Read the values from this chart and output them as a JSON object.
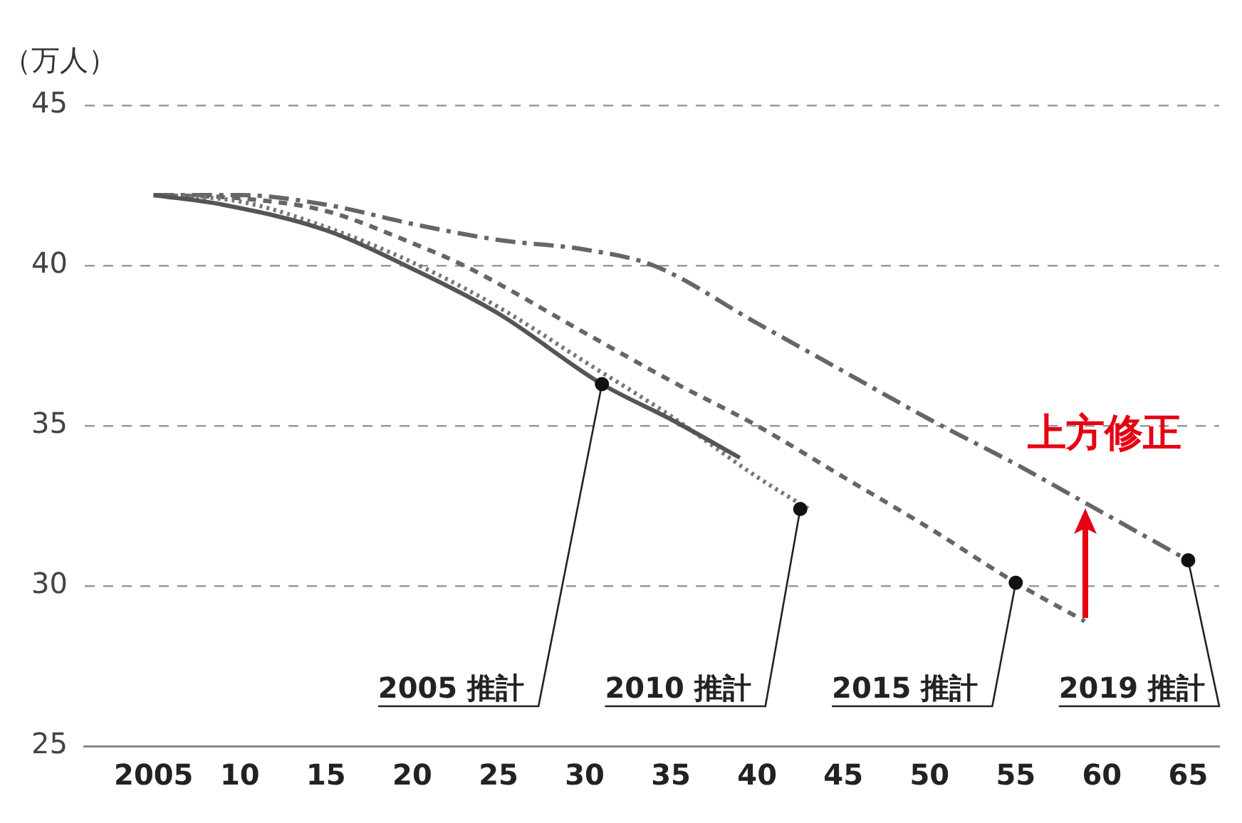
{
  "chart_data": {
    "type": "line",
    "ylabel": "（万人）",
    "xlim": [
      2001,
      2066.8
    ],
    "xticks": [
      {
        "value": 2005,
        "label": "2005"
      },
      {
        "value": 2010,
        "label": "10"
      },
      {
        "value": 2015,
        "label": "15"
      },
      {
        "value": 2020,
        "label": "20"
      },
      {
        "value": 2025,
        "label": "25"
      },
      {
        "value": 2030,
        "label": "30"
      },
      {
        "value": 2035,
        "label": "35"
      },
      {
        "value": 2040,
        "label": "40"
      },
      {
        "value": 2045,
        "label": "45"
      },
      {
        "value": 2050,
        "label": "50"
      },
      {
        "value": 2055,
        "label": "55"
      },
      {
        "value": 2060,
        "label": "60"
      },
      {
        "value": 2065,
        "label": "65"
      }
    ],
    "ylim": [
      25,
      45
    ],
    "yticks": [
      25,
      30,
      35,
      40,
      45
    ],
    "grid": "y",
    "legend": false,
    "marker": "none",
    "series": [
      {
        "color": "#555555",
        "line_style": "solid",
        "x": [
          2005,
          2009,
          2015,
          2020,
          2025,
          2031,
          2035,
          2039
        ],
        "values": [
          42.2,
          41.9,
          41.1,
          39.9,
          38.5,
          36.3,
          35.2,
          34.0
        ]
      },
      {
        "color": "#777777",
        "line_style": "dotted",
        "x": [
          2005,
          2010,
          2015,
          2020,
          2025,
          2030,
          2035,
          2040,
          2043
        ],
        "values": [
          42.2,
          42.0,
          41.2,
          40.1,
          38.7,
          37.0,
          35.3,
          33.4,
          32.4
        ]
      },
      {
        "color": "#666666",
        "line_style": "dashed",
        "x": [
          2005,
          2010,
          2015,
          2020,
          2023,
          2030,
          2035,
          2040,
          2045,
          2050,
          2055,
          2059
        ],
        "values": [
          42.2,
          42.1,
          41.7,
          40.7,
          40.0,
          37.9,
          36.4,
          35.0,
          33.4,
          31.8,
          30.1,
          28.9
        ]
      },
      {
        "color": "#666666",
        "line_style": "dashdot",
        "x": [
          2005,
          2010,
          2015,
          2020,
          2025,
          2030,
          2034,
          2040,
          2045,
          2050,
          2055,
          2060,
          2065
        ],
        "values": [
          42.2,
          42.2,
          41.9,
          41.3,
          40.8,
          40.5,
          40.0,
          38.2,
          36.7,
          35.2,
          33.8,
          32.3,
          30.8
        ]
      }
    ],
    "annotations": [
      {
        "text": "2005 推計",
        "x": 2031,
        "y": 36.3
      },
      {
        "text": "2010 推計",
        "x": 2042.5,
        "y": 32.4
      },
      {
        "text": "2015 推計",
        "x": 2055,
        "y": 30.1
      },
      {
        "text": "2019 推計",
        "x": 2065,
        "y": 30.8
      },
      "上方修正"
    ]
  }
}
